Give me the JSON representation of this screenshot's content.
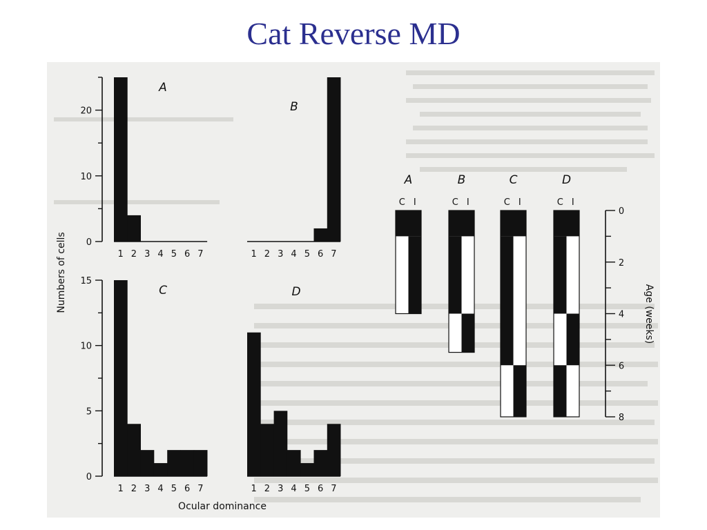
{
  "slide": {
    "title": "Cat Reverse MD"
  },
  "colors": {
    "title": "#2b2f8f",
    "bars": "#111111",
    "scan": "#efefed"
  },
  "chart_data": [
    {
      "type": "bar",
      "panel": "A",
      "categories": [
        "1",
        "2",
        "3",
        "4",
        "5",
        "6",
        "7"
      ],
      "values": [
        25,
        4,
        0,
        0,
        0,
        0,
        0
      ],
      "ylim": [
        0,
        25
      ],
      "yticks": [
        0,
        10,
        20
      ],
      "xlabel": "Ocular dominance",
      "ylabel": "Numbers of cells"
    },
    {
      "type": "bar",
      "panel": "B",
      "categories": [
        "1",
        "2",
        "3",
        "4",
        "5",
        "6",
        "7"
      ],
      "values": [
        0,
        0,
        0,
        0,
        0,
        2,
        25
      ],
      "ylim": [
        0,
        25
      ],
      "yticks": [
        0,
        10,
        20
      ],
      "xlabel": "Ocular dominance",
      "ylabel": "Numbers of cells"
    },
    {
      "type": "bar",
      "panel": "C",
      "categories": [
        "1",
        "2",
        "3",
        "4",
        "5",
        "6",
        "7"
      ],
      "values": [
        15,
        4,
        2,
        1,
        2,
        2,
        2
      ],
      "ylim": [
        0,
        15
      ],
      "yticks": [
        0,
        5,
        10,
        15
      ],
      "xlabel": "Ocular dominance",
      "ylabel": "Numbers of cells"
    },
    {
      "type": "bar",
      "panel": "D",
      "categories": [
        "1",
        "2",
        "3",
        "4",
        "5",
        "6",
        "7"
      ],
      "values": [
        11,
        4,
        5,
        2,
        1,
        2,
        4
      ],
      "ylim": [
        0,
        15
      ],
      "yticks": [
        0,
        5,
        10,
        15
      ],
      "xlabel": "Ocular dominance",
      "ylabel": "Numbers of cells"
    },
    {
      "type": "timeline",
      "ylabel": "Age (weeks)",
      "yticks": [
        0,
        2,
        4,
        6,
        8
      ],
      "ylim": [
        0,
        8
      ],
      "column_labels": [
        "C",
        "I"
      ],
      "panels": [
        {
          "label": "A",
          "end_week": 4,
          "segments": [
            {
              "from": 0,
              "to": 1,
              "closed": "both"
            },
            {
              "from": 1,
              "to": 4,
              "closed": "I"
            }
          ]
        },
        {
          "label": "B",
          "end_week": 5.5,
          "segments": [
            {
              "from": 0,
              "to": 1,
              "closed": "both"
            },
            {
              "from": 1,
              "to": 4,
              "closed": "C"
            },
            {
              "from": 4,
              "to": 5.5,
              "closed": "I"
            }
          ]
        },
        {
          "label": "C",
          "end_week": 8,
          "segments": [
            {
              "from": 0,
              "to": 1,
              "closed": "both"
            },
            {
              "from": 1,
              "to": 6,
              "closed": "C"
            },
            {
              "from": 6,
              "to": 8,
              "closed": "I"
            }
          ]
        },
        {
          "label": "D",
          "end_week": 8,
          "segments": [
            {
              "from": 0,
              "to": 1,
              "closed": "both"
            },
            {
              "from": 1,
              "to": 4,
              "closed": "C"
            },
            {
              "from": 4,
              "to": 6,
              "closed": "I"
            },
            {
              "from": 6,
              "to": 8,
              "closed": "C"
            }
          ]
        }
      ]
    }
  ]
}
